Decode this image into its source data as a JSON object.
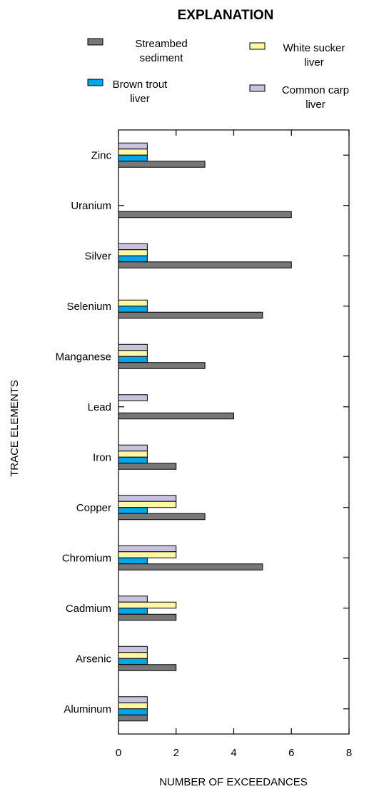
{
  "chart_data": {
    "type": "bar",
    "orientation": "horizontal",
    "title": "EXPLANATION",
    "xlabel": "NUMBER OF EXCEEDANCES",
    "ylabel": "TRACE ELEMENTS",
    "xlim": [
      0,
      8
    ],
    "xticks": [
      "0",
      "2",
      "4",
      "6",
      "8"
    ],
    "grid": false,
    "legend_position": "top",
    "categories": [
      "Zinc",
      "Uranium",
      "Silver",
      "Selenium",
      "Manganese",
      "Lead",
      "Iron",
      "Copper",
      "Chromium",
      "Cadmium",
      "Arsenic",
      "Aluminum"
    ],
    "series": [
      {
        "name": "Streambed sediment",
        "name_lines": [
          "Streambed",
          "sediment"
        ],
        "color": "#777777",
        "values": [
          3,
          6,
          6,
          5,
          3,
          4,
          2,
          3,
          5,
          2,
          2,
          1
        ]
      },
      {
        "name": "Brown trout liver",
        "name_lines": [
          "Brown trout",
          "liver"
        ],
        "color": "#00a6e8",
        "values": [
          1,
          0,
          1,
          1,
          1,
          0,
          1,
          1,
          1,
          1,
          1,
          1
        ]
      },
      {
        "name": "White sucker liver",
        "name_lines": [
          "White sucker",
          "liver"
        ],
        "color": "#fff7a6",
        "values": [
          1,
          0,
          1,
          1,
          1,
          0,
          1,
          2,
          2,
          2,
          1,
          1
        ]
      },
      {
        "name": "Common carp liver",
        "name_lines": [
          "Common carp",
          "liver"
        ],
        "color": "#c9c2de",
        "values": [
          1,
          0,
          1,
          0,
          1,
          1,
          1,
          2,
          2,
          1,
          1,
          1
        ]
      }
    ]
  }
}
